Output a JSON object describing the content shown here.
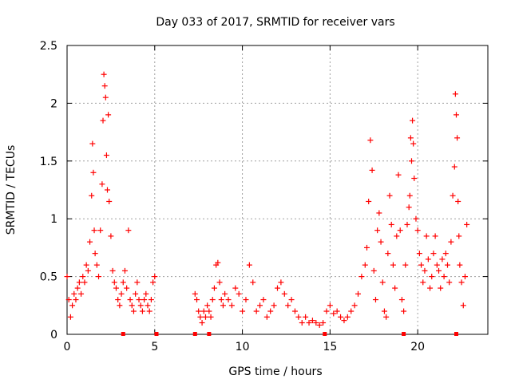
{
  "chart_data": {
    "type": "scatter",
    "title": "Day 033 of 2017, SRMTID for receiver vars",
    "xlabel": "GPS time / hours",
    "ylabel": "SRMTID / TECUs",
    "xlim": [
      0,
      24
    ],
    "ylim": [
      0,
      2.5
    ],
    "x_ticks": [
      0,
      5,
      10,
      15,
      20
    ],
    "x_tick_labels": [
      "0",
      "5",
      "10",
      "15",
      "20"
    ],
    "y_ticks": [
      0,
      0.5,
      1,
      1.5,
      2,
      2.5
    ],
    "y_tick_labels": [
      "0",
      "0.5",
      "1",
      "1.5",
      "2",
      "2.5"
    ],
    "grid": true,
    "marker": "+",
    "color": "#ff0000",
    "data_gap_markers_x": [
      3.2,
      5.1,
      7.3,
      8.1,
      14.7,
      19.2,
      22.2
    ],
    "series": [
      {
        "name": "SRMTID",
        "x": [
          0.0,
          0.1,
          0.2,
          0.3,
          0.4,
          0.5,
          0.6,
          0.7,
          0.8,
          0.9,
          1.0,
          1.1,
          1.2,
          1.3,
          1.4,
          1.45,
          1.5,
          1.55,
          1.6,
          1.7,
          1.8,
          1.9,
          2.0,
          2.05,
          2.1,
          2.15,
          2.2,
          2.25,
          2.3,
          2.35,
          2.4,
          2.5,
          2.6,
          2.7,
          2.8,
          2.9,
          3.0,
          3.1,
          3.2,
          3.3,
          3.4,
          3.5,
          3.6,
          3.7,
          3.8,
          3.9,
          4.0,
          4.1,
          4.2,
          4.3,
          4.4,
          4.5,
          4.6,
          4.7,
          4.8,
          4.9,
          5.0,
          7.3,
          7.4,
          7.5,
          7.6,
          7.7,
          7.8,
          7.9,
          8.0,
          8.1,
          8.2,
          8.3,
          8.4,
          8.5,
          8.6,
          8.7,
          8.8,
          8.9,
          9.0,
          9.2,
          9.4,
          9.6,
          9.8,
          10.0,
          10.2,
          10.4,
          10.6,
          10.8,
          11.0,
          11.2,
          11.4,
          11.6,
          11.8,
          12.0,
          12.2,
          12.4,
          12.6,
          12.8,
          13.0,
          13.2,
          13.4,
          13.6,
          13.8,
          14.0,
          14.2,
          14.4,
          14.6,
          14.8,
          15.0,
          15.2,
          15.4,
          15.6,
          15.8,
          16.0,
          16.2,
          16.4,
          16.6,
          16.8,
          17.0,
          17.1,
          17.2,
          17.3,
          17.4,
          17.5,
          17.6,
          17.7,
          17.8,
          17.9,
          18.0,
          18.1,
          18.2,
          18.3,
          18.4,
          18.5,
          18.6,
          18.7,
          18.8,
          18.9,
          19.0,
          19.1,
          19.2,
          19.3,
          19.4,
          19.5,
          19.55,
          19.6,
          19.65,
          19.7,
          19.75,
          19.8,
          19.9,
          20.0,
          20.1,
          20.2,
          20.3,
          20.4,
          20.5,
          20.6,
          20.7,
          20.8,
          20.9,
          21.0,
          21.1,
          21.2,
          21.3,
          21.4,
          21.5,
          21.6,
          21.7,
          21.8,
          21.9,
          22.0,
          22.1,
          22.15,
          22.2,
          22.25,
          22.3,
          22.35,
          22.4,
          22.5,
          22.6,
          22.7,
          22.8
        ],
        "values": [
          0.5,
          0.3,
          0.15,
          0.25,
          0.35,
          0.3,
          0.4,
          0.45,
          0.35,
          0.5,
          0.45,
          0.6,
          0.55,
          0.8,
          1.2,
          1.65,
          1.4,
          0.9,
          0.7,
          0.6,
          0.5,
          0.9,
          1.3,
          1.85,
          2.25,
          2.15,
          2.05,
          1.55,
          1.25,
          1.9,
          1.15,
          0.85,
          0.55,
          0.45,
          0.4,
          0.3,
          0.25,
          0.35,
          0.45,
          0.55,
          0.4,
          0.9,
          0.3,
          0.25,
          0.2,
          0.35,
          0.45,
          0.3,
          0.25,
          0.2,
          0.3,
          0.35,
          0.25,
          0.2,
          0.3,
          0.45,
          0.5,
          0.35,
          0.3,
          0.2,
          0.15,
          0.1,
          0.2,
          0.15,
          0.25,
          0.2,
          0.15,
          0.3,
          0.4,
          0.6,
          0.62,
          0.45,
          0.3,
          0.25,
          0.35,
          0.3,
          0.25,
          0.4,
          0.35,
          0.2,
          0.3,
          0.6,
          0.45,
          0.2,
          0.25,
          0.3,
          0.15,
          0.2,
          0.25,
          0.4,
          0.45,
          0.35,
          0.25,
          0.3,
          0.2,
          0.15,
          0.1,
          0.15,
          0.1,
          0.12,
          0.1,
          0.08,
          0.1,
          0.2,
          0.25,
          0.18,
          0.2,
          0.15,
          0.12,
          0.15,
          0.2,
          0.25,
          0.35,
          0.5,
          0.6,
          0.75,
          1.15,
          1.68,
          1.42,
          0.55,
          0.3,
          0.9,
          1.05,
          0.8,
          0.45,
          0.2,
          0.15,
          0.7,
          1.2,
          0.95,
          0.6,
          0.4,
          0.85,
          1.38,
          0.9,
          0.3,
          0.2,
          0.6,
          0.95,
          1.1,
          1.2,
          1.7,
          1.5,
          1.85,
          1.65,
          1.35,
          1.0,
          0.9,
          0.7,
          0.6,
          0.45,
          0.55,
          0.85,
          0.65,
          0.4,
          0.5,
          0.7,
          0.85,
          0.6,
          0.55,
          0.4,
          0.65,
          0.5,
          0.7,
          0.6,
          0.45,
          0.8,
          1.2,
          1.45,
          2.08,
          1.9,
          1.7,
          1.15,
          0.85,
          0.6,
          0.45,
          0.25,
          0.5,
          0.95
        ]
      }
    ]
  }
}
